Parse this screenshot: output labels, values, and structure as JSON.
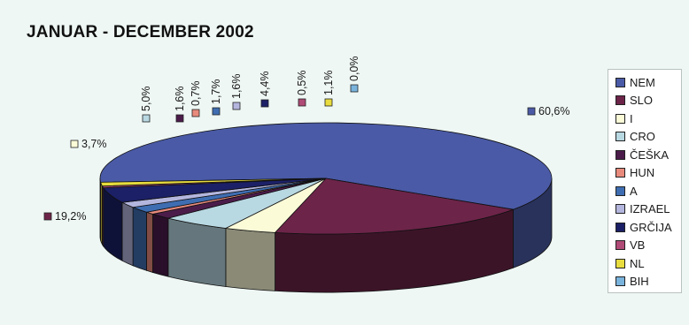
{
  "chart_data": {
    "type": "pie",
    "title": "JANUAR - DECEMBER 2002",
    "legend_position": "right",
    "slices": [
      {
        "name": "NEM",
        "value": 60.6,
        "label": "60,6%",
        "color": "#4a5aa6"
      },
      {
        "name": "SLO",
        "value": 19.2,
        "label": "19,2%",
        "color": "#6d2449"
      },
      {
        "name": "I",
        "value": 3.7,
        "label": "3,7%",
        "color": "#fbfbd8"
      },
      {
        "name": "CRO",
        "value": 5.0,
        "label": "5,0%",
        "color": "#b8d8e2"
      },
      {
        "name": "ČEŠKA",
        "value": 1.6,
        "label": "1,6%",
        "color": "#4b1c4a"
      },
      {
        "name": "HUN",
        "value": 0.7,
        "label": "0,7%",
        "color": "#e88a7c"
      },
      {
        "name": "A",
        "value": 1.7,
        "label": "1,7%",
        "color": "#3f6db2"
      },
      {
        "name": "IZRAEL",
        "value": 1.6,
        "label": "1,6%",
        "color": "#b4b6de"
      },
      {
        "name": "GRČIJA",
        "value": 4.4,
        "label": "4,4%",
        "color": "#1c2066"
      },
      {
        "name": "VB",
        "value": 0.5,
        "label": "0,5%",
        "color": "#b04a76"
      },
      {
        "name": "NL",
        "value": 1.1,
        "label": "1,1%",
        "color": "#e8dc3e"
      },
      {
        "name": "BIH",
        "value": 0.0,
        "label": "0,0%",
        "color": "#7ab3dc"
      }
    ]
  }
}
